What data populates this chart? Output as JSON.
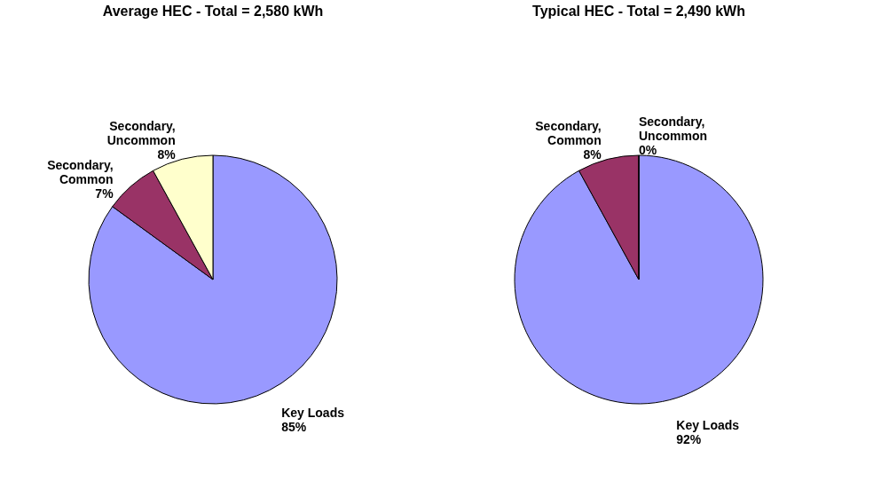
{
  "chart_data": [
    {
      "type": "pie",
      "title": "Average HEC  - Total = 2,580 kWh",
      "categories": [
        "Key Loads",
        "Secondary, Common",
        "Secondary, Uncommon"
      ],
      "values": [
        85,
        7,
        8
      ],
      "value_labels": [
        "85%",
        "7%",
        "8%"
      ],
      "colors": [
        "#9999ff",
        "#993366",
        "#ffffcc"
      ],
      "legend": false
    },
    {
      "type": "pie",
      "title": "Typical HEC - Total = 2,490 kWh",
      "categories": [
        "Key Loads",
        "Secondary, Common",
        "Secondary, Uncommon"
      ],
      "values": [
        92,
        8,
        0
      ],
      "value_labels": [
        "92%",
        "8%",
        "0%"
      ],
      "colors": [
        "#9999ff",
        "#993366",
        "#ffffcc"
      ],
      "legend": false
    }
  ]
}
